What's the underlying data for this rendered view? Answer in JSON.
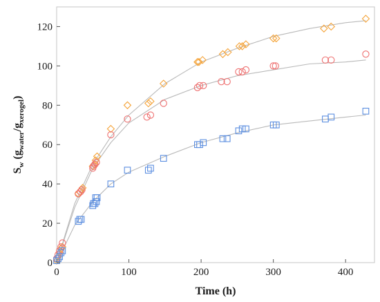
{
  "chart_data": {
    "type": "scatter",
    "xlabel": "Time (h)",
    "ylabel": {
      "base": "S",
      "base_sub": "w",
      "open": " (g",
      "num_sub": "water",
      "slash": "/g",
      "den_sub": "xerogel",
      "close": ")"
    },
    "xlim": [
      0,
      440
    ],
    "ylim": [
      0,
      130
    ],
    "xticks": [
      0,
      100,
      200,
      300,
      400
    ],
    "yticks": [
      0,
      20,
      40,
      60,
      80,
      100,
      120
    ],
    "grid": false,
    "legend": "none",
    "series": [
      {
        "marker": "diamond",
        "color": "#f5a43a",
        "points": [
          [
            0,
            1
          ],
          [
            2,
            3
          ],
          [
            4,
            5
          ],
          [
            6,
            7
          ],
          [
            8,
            8
          ],
          [
            30,
            35
          ],
          [
            32,
            36
          ],
          [
            34,
            37
          ],
          [
            36,
            38
          ],
          [
            50,
            49
          ],
          [
            52,
            50
          ],
          [
            54,
            52
          ],
          [
            56,
            54
          ],
          [
            75,
            68
          ],
          [
            98,
            80
          ],
          [
            127,
            81
          ],
          [
            130,
            82
          ],
          [
            148,
            91
          ],
          [
            195,
            102
          ],
          [
            197,
            102
          ],
          [
            202,
            103
          ],
          [
            230,
            106
          ],
          [
            237,
            107
          ],
          [
            253,
            110
          ],
          [
            257,
            110
          ],
          [
            262,
            111
          ],
          [
            300,
            114
          ],
          [
            304,
            114
          ],
          [
            370,
            119
          ],
          [
            380,
            120
          ],
          [
            428,
            124
          ]
        ],
        "fit": [
          [
            0,
            0
          ],
          [
            25,
            30
          ],
          [
            50,
            50
          ],
          [
            75,
            64
          ],
          [
            100,
            75
          ],
          [
            150,
            91
          ],
          [
            200,
            102
          ],
          [
            250,
            109
          ],
          [
            300,
            115
          ],
          [
            350,
            119
          ],
          [
            400,
            122
          ],
          [
            428,
            123
          ]
        ]
      },
      {
        "marker": "circle",
        "color": "#ee6f6f",
        "points": [
          [
            0,
            2
          ],
          [
            2,
            4
          ],
          [
            4,
            6
          ],
          [
            6,
            8
          ],
          [
            8,
            10
          ],
          [
            30,
            35
          ],
          [
            33,
            36
          ],
          [
            35,
            37
          ],
          [
            50,
            48
          ],
          [
            51,
            49
          ],
          [
            53,
            50
          ],
          [
            55,
            51
          ],
          [
            75,
            65
          ],
          [
            98,
            73
          ],
          [
            125,
            74
          ],
          [
            130,
            75
          ],
          [
            148,
            81
          ],
          [
            195,
            89
          ],
          [
            198,
            90
          ],
          [
            203,
            90
          ],
          [
            228,
            92
          ],
          [
            236,
            92
          ],
          [
            252,
            97
          ],
          [
            257,
            97
          ],
          [
            262,
            98
          ],
          [
            300,
            100
          ],
          [
            303,
            100
          ],
          [
            372,
            103
          ],
          [
            380,
            103
          ],
          [
            428,
            106
          ]
        ],
        "fit": [
          [
            0,
            0
          ],
          [
            25,
            28
          ],
          [
            50,
            48
          ],
          [
            75,
            61
          ],
          [
            100,
            71
          ],
          [
            150,
            83
          ],
          [
            200,
            90
          ],
          [
            250,
            95
          ],
          [
            300,
            98
          ],
          [
            350,
            101
          ],
          [
            400,
            102
          ],
          [
            428,
            103
          ]
        ]
      },
      {
        "marker": "square",
        "color": "#5b8ee0",
        "points": [
          [
            0,
            1
          ],
          [
            2,
            2
          ],
          [
            4,
            3
          ],
          [
            6,
            5
          ],
          [
            8,
            6
          ],
          [
            30,
            21
          ],
          [
            32,
            22
          ],
          [
            34,
            22
          ],
          [
            50,
            29
          ],
          [
            51,
            30
          ],
          [
            53,
            30
          ],
          [
            55,
            31
          ],
          [
            54,
            33
          ],
          [
            56,
            33
          ],
          [
            75,
            40
          ],
          [
            98,
            47
          ],
          [
            127,
            47
          ],
          [
            130,
            48
          ],
          [
            148,
            53
          ],
          [
            195,
            60
          ],
          [
            198,
            60
          ],
          [
            203,
            61
          ],
          [
            230,
            63
          ],
          [
            236,
            63
          ],
          [
            252,
            67
          ],
          [
            257,
            68
          ],
          [
            262,
            68
          ],
          [
            300,
            70
          ],
          [
            304,
            70
          ],
          [
            372,
            73
          ],
          [
            380,
            74
          ],
          [
            428,
            77
          ]
        ],
        "fit": [
          [
            0,
            0
          ],
          [
            25,
            19
          ],
          [
            50,
            31
          ],
          [
            75,
            40
          ],
          [
            100,
            46
          ],
          [
            150,
            54
          ],
          [
            200,
            61
          ],
          [
            250,
            66
          ],
          [
            300,
            70
          ],
          [
            350,
            72
          ],
          [
            400,
            74
          ],
          [
            428,
            75
          ]
        ]
      }
    ]
  }
}
